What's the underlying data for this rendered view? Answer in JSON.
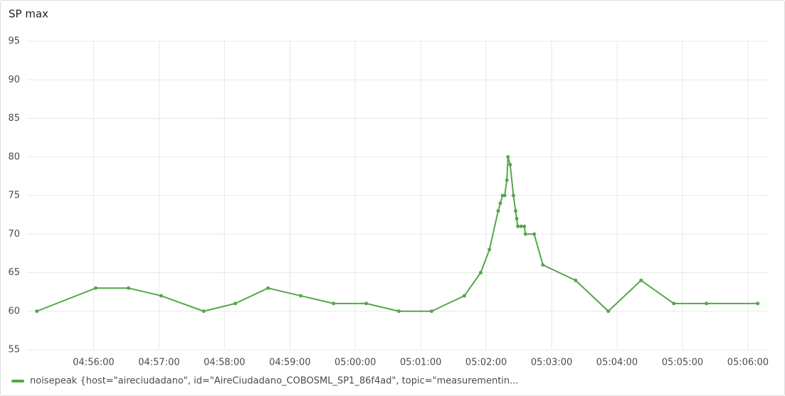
{
  "chart_data": {
    "type": "line",
    "title": "SP max",
    "x": [
      "04:55:08",
      "04:56:02",
      "04:56:32",
      "04:57:02",
      "04:57:41",
      "04:58:10",
      "04:58:40",
      "04:59:10",
      "04:59:40",
      "05:00:10",
      "05:00:40",
      "05:01:10",
      "05:01:40",
      "05:01:55",
      "05:02:03",
      "05:02:11",
      "05:02:13",
      "05:02:15",
      "05:02:17",
      "05:02:19",
      "05:02:20",
      "05:02:22",
      "05:02:25",
      "05:02:27",
      "05:02:28",
      "05:02:29",
      "05:02:32",
      "05:02:35",
      "05:02:36",
      "05:02:44",
      "05:02:52",
      "05:03:22",
      "05:03:52",
      "05:04:22",
      "05:04:52",
      "05:05:22",
      "05:06:09"
    ],
    "series": [
      {
        "name": "noisepeak {host=\"aireciudadano\", id=\"AireCiudadano_COBOSML_SP1_86f4ad\", topic=\"measurementin...",
        "color": "#56a64b",
        "values": [
          60,
          63,
          63,
          62,
          60,
          61,
          63,
          62,
          61,
          61,
          60,
          60,
          62,
          65,
          68,
          73,
          74,
          75,
          75,
          77,
          80,
          79,
          75,
          73,
          72,
          71,
          71,
          71,
          70,
          70,
          66,
          64,
          60,
          64,
          61,
          61,
          61
        ]
      }
    ],
    "xlim": [
      "04:54:59",
      "05:06:19"
    ],
    "xticks": [
      "04:56:00",
      "04:57:00",
      "04:58:00",
      "04:59:00",
      "05:00:00",
      "05:01:00",
      "05:02:00",
      "05:03:00",
      "05:04:00",
      "05:05:00",
      "05:06:00"
    ],
    "ylim": [
      55,
      95
    ],
    "yticks": [
      55,
      60,
      65,
      70,
      75,
      80,
      85,
      90,
      95
    ],
    "grid": true
  }
}
